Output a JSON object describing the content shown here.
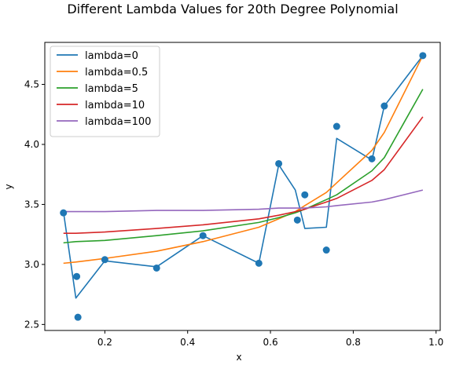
{
  "chart_data": {
    "type": "line",
    "title": "Different Lambda Values for 20th Degree Polynomial",
    "xlabel": "x",
    "ylabel": "y",
    "xlim": [
      0.055,
      1.01
    ],
    "ylim": [
      2.45,
      4.85
    ],
    "xticks": [
      0.2,
      0.4,
      0.6,
      0.8,
      1.0
    ],
    "xtick_labels": [
      "0.2",
      "0.4",
      "0.6",
      "0.8",
      "1.0"
    ],
    "yticks": [
      2.5,
      3.0,
      3.5,
      4.0,
      4.5
    ],
    "ytick_labels": [
      "2.5",
      "3.0",
      "3.5",
      "4.0",
      "4.5"
    ],
    "grid": false,
    "legend_position": "top-left",
    "x": [
      0.1,
      0.13,
      0.2,
      0.325,
      0.437,
      0.572,
      0.62,
      0.66,
      0.683,
      0.735,
      0.76,
      0.845,
      0.875,
      0.968
    ],
    "scatter": {
      "color": "#1f77b4",
      "x": [
        0.1,
        0.132,
        0.135,
        0.2,
        0.325,
        0.437,
        0.572,
        0.62,
        0.665,
        0.683,
        0.735,
        0.76,
        0.845,
        0.875,
        0.968
      ],
      "y": [
        3.43,
        2.9,
        2.56,
        3.04,
        2.97,
        3.24,
        3.01,
        3.84,
        3.37,
        3.58,
        3.12,
        4.15,
        3.88,
        4.32,
        4.74
      ]
    },
    "series": [
      {
        "name": "lambda=0",
        "color": "#1f77b4",
        "values": [
          3.44,
          2.72,
          3.03,
          2.98,
          3.24,
          3.01,
          3.83,
          3.62,
          3.3,
          3.31,
          4.05,
          3.87,
          4.32,
          4.74
        ]
      },
      {
        "name": "lambda=0.5",
        "color": "#ff7f0e",
        "values": [
          3.01,
          3.02,
          3.05,
          3.11,
          3.19,
          3.31,
          3.38,
          3.44,
          3.49,
          3.6,
          3.68,
          3.95,
          4.1,
          4.74
        ]
      },
      {
        "name": "lambda=5",
        "color": "#2ca02c",
        "values": [
          3.18,
          3.19,
          3.2,
          3.24,
          3.28,
          3.35,
          3.39,
          3.43,
          3.46,
          3.54,
          3.58,
          3.78,
          3.89,
          4.46
        ]
      },
      {
        "name": "lambda=10",
        "color": "#d62728",
        "values": [
          3.26,
          3.26,
          3.27,
          3.3,
          3.33,
          3.38,
          3.41,
          3.44,
          3.46,
          3.52,
          3.55,
          3.7,
          3.79,
          4.23
        ]
      },
      {
        "name": "lambda=100",
        "color": "#9467bd",
        "values": [
          3.44,
          3.44,
          3.44,
          3.45,
          3.45,
          3.46,
          3.47,
          3.47,
          3.47,
          3.48,
          3.49,
          3.52,
          3.54,
          3.62
        ]
      }
    ]
  }
}
